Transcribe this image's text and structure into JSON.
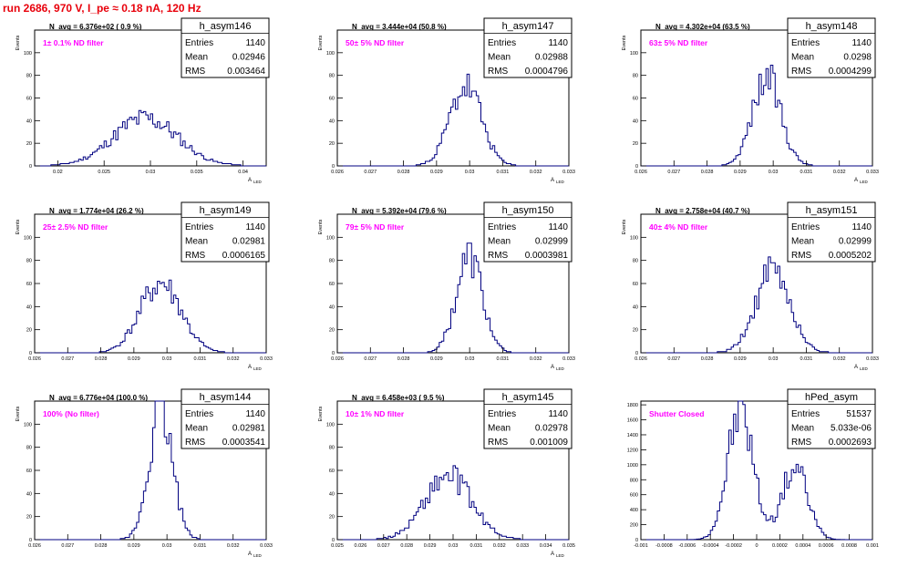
{
  "run_title": "run 2686,   970 V, I_pe ≈ 0.18 nA, 120 Hz",
  "colors": {
    "histogram": "#000080",
    "annotation": "#ff00ff",
    "run_title": "#e8000b",
    "axis": "#000000"
  },
  "stat_labels": {
    "entries": "Entries",
    "mean": "Mean",
    "rms": "RMS"
  },
  "chart_data": [
    {
      "type": "histogram",
      "name": "h_asym146",
      "navg": "N_avg = 6.376e+02 ( 0.9 %)",
      "note": "1± 0.1% ND filter",
      "stats": {
        "entries": "1140",
        "mean": "0.02946",
        "rms": "0.003464"
      },
      "ylabel": "Events",
      "xlabel": "A",
      "xlim": [
        0.0175,
        0.0425
      ],
      "ylim": [
        0,
        120
      ],
      "xticks": [
        0.02,
        0.025,
        0.03,
        0.035,
        0.04
      ],
      "xtick_labels": [
        "0.02",
        "0.025",
        "0.03",
        "0.035",
        "0.04"
      ],
      "yticks": [
        0,
        20,
        40,
        60,
        80,
        100
      ],
      "ytick_labels": [
        "0",
        "20",
        "40",
        "60",
        "80",
        "100"
      ],
      "mean": 0.02946,
      "sigma": 0.003464,
      "peak": 42,
      "seed": 11
    },
    {
      "type": "histogram",
      "name": "h_asym147",
      "navg": "N_avg = 3.444e+04 (50.8 %)",
      "note": "50± 5% ND filter",
      "stats": {
        "entries": "1140",
        "mean": "0.02988",
        "rms": "0.0004796"
      },
      "ylabel": "Events",
      "xlabel": "A",
      "xlim": [
        0.026,
        0.033
      ],
      "ylim": [
        0,
        120
      ],
      "xticks": [
        0.026,
        0.027,
        0.028,
        0.029,
        0.03,
        0.031,
        0.032,
        0.033
      ],
      "xtick_labels": [
        "0.026",
        "0.027",
        "0.028",
        "0.029",
        "0.03",
        "0.031",
        "0.032",
        "0.033"
      ],
      "yticks": [
        0,
        20,
        40,
        60,
        80,
        100
      ],
      "ytick_labels": [
        "0",
        "20",
        "40",
        "60",
        "80",
        "100"
      ],
      "mean": 0.02988,
      "sigma": 0.0004796,
      "peak": 70,
      "seed": 23
    },
    {
      "type": "histogram",
      "name": "h_asym148",
      "navg": "N_avg = 4.302e+04 (63.5 %)",
      "note": "63± 5% ND filter",
      "stats": {
        "entries": "1140",
        "mean": "0.0298",
        "rms": "0.0004299"
      },
      "ylabel": "Events",
      "xlabel": "A",
      "xlim": [
        0.026,
        0.033
      ],
      "ylim": [
        0,
        120
      ],
      "xticks": [
        0.026,
        0.027,
        0.028,
        0.029,
        0.03,
        0.031,
        0.032,
        0.033
      ],
      "xtick_labels": [
        "0.026",
        "0.027",
        "0.028",
        "0.029",
        "0.03",
        "0.031",
        "0.032",
        "0.033"
      ],
      "yticks": [
        0,
        20,
        40,
        60,
        80,
        100
      ],
      "ytick_labels": [
        "0",
        "20",
        "40",
        "60",
        "80",
        "100"
      ],
      "mean": 0.0298,
      "sigma": 0.0004299,
      "peak": 78,
      "seed": 37
    },
    {
      "type": "histogram",
      "name": "h_asym149",
      "navg": "N_avg = 1.774e+04 (26.2 %)",
      "note": "25± 2.5% ND filter",
      "stats": {
        "entries": "1140",
        "mean": "0.02981",
        "rms": "0.0006165"
      },
      "ylabel": "Events",
      "xlabel": "A",
      "xlim": [
        0.026,
        0.033
      ],
      "ylim": [
        0,
        120
      ],
      "xticks": [
        0.026,
        0.027,
        0.028,
        0.029,
        0.03,
        0.031,
        0.032,
        0.033
      ],
      "xtick_labels": [
        "0.026",
        "0.027",
        "0.028",
        "0.029",
        "0.03",
        "0.031",
        "0.032",
        "0.033"
      ],
      "yticks": [
        0,
        20,
        40,
        60,
        80,
        100
      ],
      "ytick_labels": [
        "0",
        "20",
        "40",
        "60",
        "80",
        "100"
      ],
      "mean": 0.02981,
      "sigma": 0.0006165,
      "peak": 60,
      "seed": 41
    },
    {
      "type": "histogram",
      "name": "h_asym150",
      "navg": "N_avg = 5.392e+04 (79.6 %)",
      "note": "79± 5% ND filter",
      "stats": {
        "entries": "1140",
        "mean": "0.02999",
        "rms": "0.0003981"
      },
      "ylabel": "Events",
      "xlabel": "A",
      "xlim": [
        0.026,
        0.033
      ],
      "ylim": [
        0,
        120
      ],
      "xticks": [
        0.026,
        0.027,
        0.028,
        0.029,
        0.03,
        0.031,
        0.032,
        0.033
      ],
      "xtick_labels": [
        "0.026",
        "0.027",
        "0.028",
        "0.029",
        "0.03",
        "0.031",
        "0.032",
        "0.033"
      ],
      "yticks": [
        0,
        20,
        40,
        60,
        80,
        100
      ],
      "ytick_labels": [
        "0",
        "20",
        "40",
        "60",
        "80",
        "100"
      ],
      "mean": 0.02999,
      "sigma": 0.0003981,
      "peak": 83,
      "seed": 53
    },
    {
      "type": "histogram",
      "name": "h_asym151",
      "navg": "N_avg = 2.758e+04 (40.7 %)",
      "note": "40± 4% ND filter",
      "stats": {
        "entries": "1140",
        "mean": "0.02999",
        "rms": "0.0005202"
      },
      "ylabel": "Events",
      "xlabel": "A",
      "xlim": [
        0.026,
        0.033
      ],
      "ylim": [
        0,
        120
      ],
      "xticks": [
        0.026,
        0.027,
        0.028,
        0.029,
        0.03,
        0.031,
        0.032,
        0.033
      ],
      "xtick_labels": [
        "0.026",
        "0.027",
        "0.028",
        "0.029",
        "0.03",
        "0.031",
        "0.032",
        "0.033"
      ],
      "yticks": [
        0,
        20,
        40,
        60,
        80,
        100
      ],
      "ytick_labels": [
        "0",
        "20",
        "40",
        "60",
        "80",
        "100"
      ],
      "mean": 0.02999,
      "sigma": 0.0005202,
      "peak": 70,
      "seed": 61
    },
    {
      "type": "histogram",
      "name": "h_asym144",
      "navg": "N_avg = 6.776e+04 (100.0 %)",
      "note": "100% (No filter)",
      "stats": {
        "entries": "1140",
        "mean": "0.02981",
        "rms": "0.0003541"
      },
      "ylabel": "Events",
      "xlabel": "A",
      "xlim": [
        0.026,
        0.033
      ],
      "ylim": [
        0,
        120
      ],
      "xticks": [
        0.026,
        0.027,
        0.028,
        0.029,
        0.03,
        0.031,
        0.032,
        0.033
      ],
      "xtick_labels": [
        "0.026",
        "0.027",
        "0.028",
        "0.029",
        "0.03",
        "0.031",
        "0.032",
        "0.033"
      ],
      "yticks": [
        0,
        20,
        40,
        60,
        80,
        100
      ],
      "ytick_labels": [
        "0",
        "20",
        "40",
        "60",
        "80",
        "100"
      ],
      "mean": 0.02981,
      "sigma": 0.0003541,
      "peak": 116,
      "seed": 73
    },
    {
      "type": "histogram",
      "name": "h_asym145",
      "navg": "N_avg = 6.458e+03 ( 9.5 %)",
      "note": "10± 1% ND filter",
      "stats": {
        "entries": "1140",
        "mean": "0.02978",
        "rms": "0.001009"
      },
      "ylabel": "Events",
      "xlabel": "A",
      "xlim": [
        0.025,
        0.035
      ],
      "ylim": [
        0,
        120
      ],
      "xticks": [
        0.025,
        0.026,
        0.027,
        0.028,
        0.029,
        0.03,
        0.031,
        0.032,
        0.033,
        0.034,
        0.035
      ],
      "xtick_labels": [
        "0.025",
        "0.026",
        "0.027",
        "0.028",
        "0.029",
        "0.03",
        "0.031",
        "0.032",
        "0.033",
        "0.034",
        "0.035"
      ],
      "yticks": [
        0,
        20,
        40,
        60,
        80,
        100
      ],
      "ytick_labels": [
        "0",
        "20",
        "40",
        "60",
        "80",
        "100"
      ],
      "mean": 0.02978,
      "sigma": 0.001009,
      "peak": 55,
      "seed": 89
    },
    {
      "type": "histogram",
      "name": "hPed_asym",
      "navg": "",
      "note": "Shutter Closed",
      "stats": {
        "entries": "51537",
        "mean": "5.033e-06",
        "rms": "0.0002693"
      },
      "ylabel": "",
      "xlabel": "",
      "xlim": [
        -0.001,
        0.001
      ],
      "ylim": [
        0,
        1850
      ],
      "xticks": [
        -0.001,
        -0.0008,
        -0.0006,
        -0.0004,
        -0.0002,
        0,
        0.0002,
        0.0004,
        0.0006,
        0.0008,
        0.001
      ],
      "xtick_labels": [
        "-0.001",
        "-0.0008",
        "-0.0006",
        "-0.0004",
        "-0.0002",
        "0",
        "0.0002",
        "0.0004",
        "0.0006",
        "0.0008",
        "0.001"
      ],
      "yticks": [
        0,
        200,
        400,
        600,
        800,
        1000,
        1200,
        1400,
        1600,
        1800
      ],
      "ytick_labels": [
        "0",
        "200",
        "400",
        "600",
        "800",
        "1000",
        "1200",
        "1400",
        "1600",
        "1800"
      ],
      "components": [
        {
          "mean": -0.00014,
          "sigma": 0.00011,
          "peak": 1720
        },
        {
          "mean": 0.00033,
          "sigma": 0.00011,
          "peak": 960
        }
      ],
      "seed": 97
    }
  ]
}
